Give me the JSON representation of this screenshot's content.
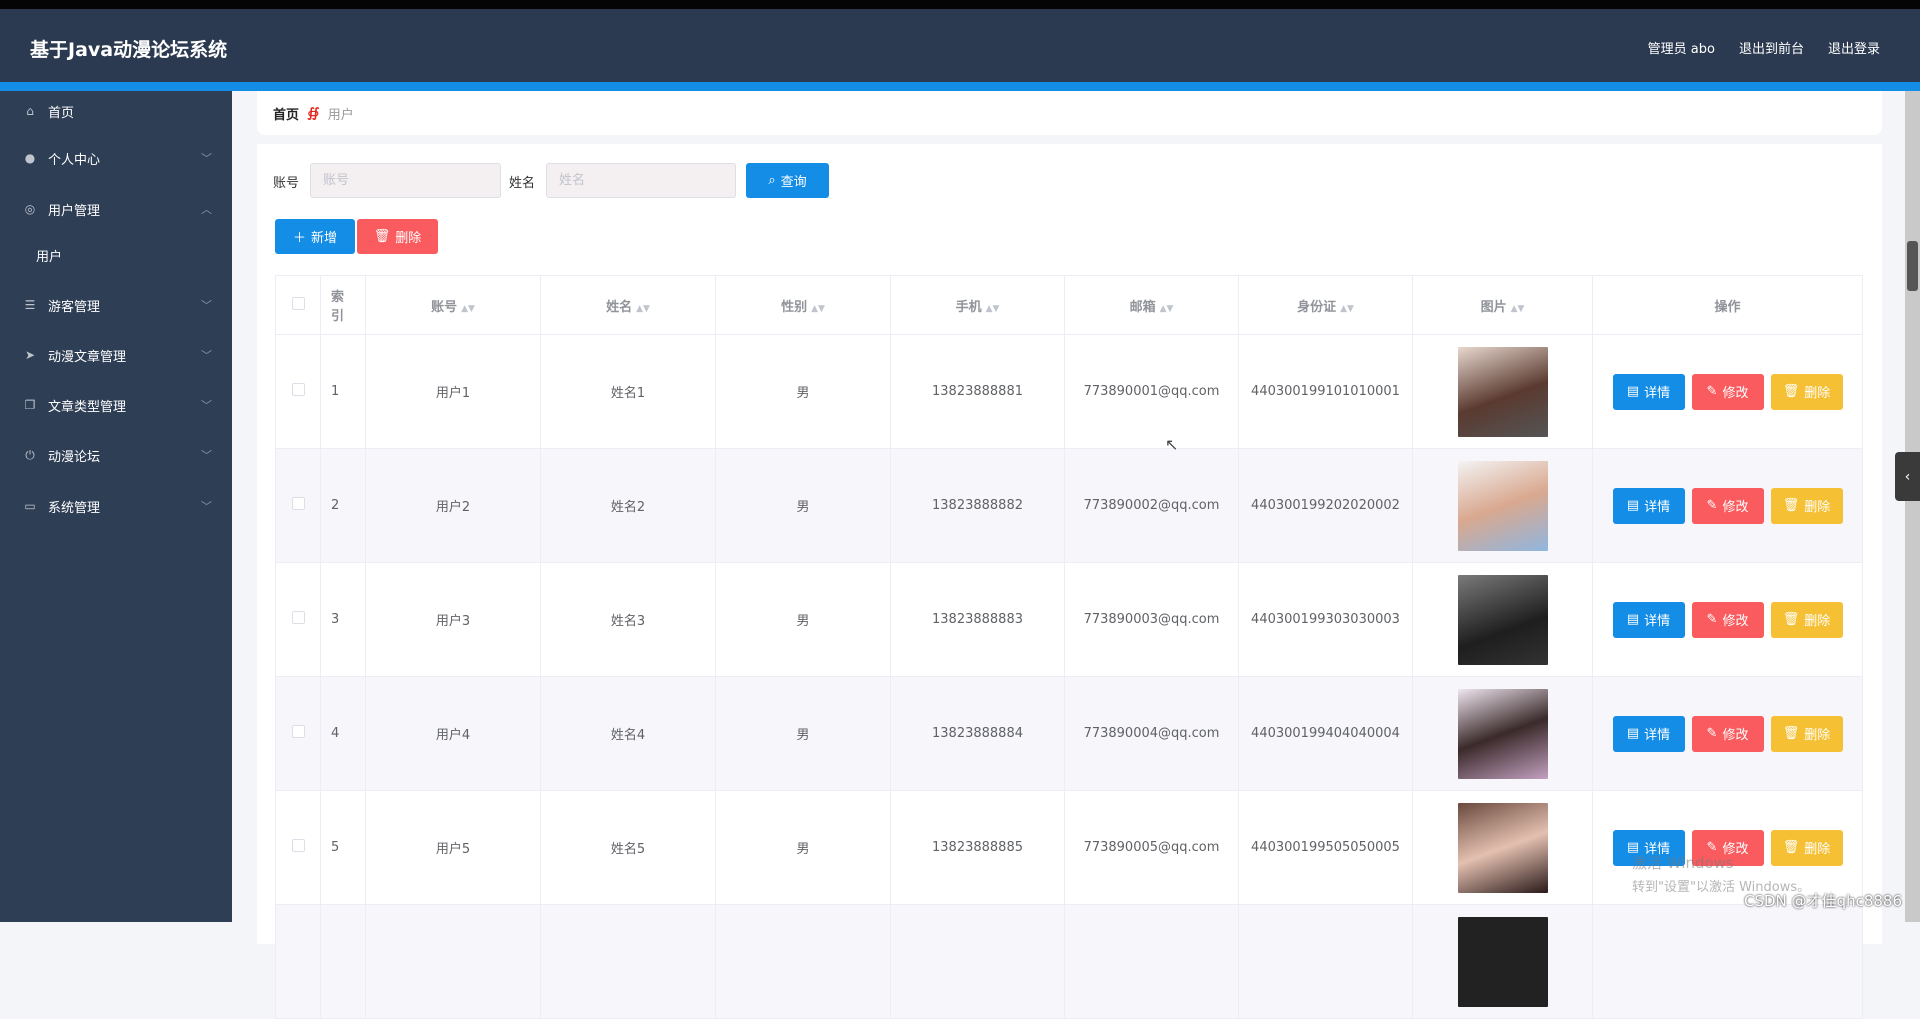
{
  "header": {
    "title": "基于Java动漫论坛系统",
    "admin": "管理员 abo",
    "to_front": "退出到前台",
    "logout": "退出登录"
  },
  "sidebar": {
    "items": [
      {
        "label": "首页",
        "icon": "home-icon"
      },
      {
        "label": "个人中心",
        "icon": "user-icon",
        "expanded": false
      },
      {
        "label": "用户管理",
        "icon": "compass-icon",
        "expanded": true
      },
      {
        "label": "用户",
        "sub": true
      },
      {
        "label": "游客管理",
        "icon": "sliders-icon",
        "expanded": false
      },
      {
        "label": "动漫文章管理",
        "icon": "send-icon",
        "expanded": false
      },
      {
        "label": "文章类型管理",
        "icon": "copy-icon",
        "expanded": false
      },
      {
        "label": "动漫论坛",
        "icon": "power-icon",
        "expanded": false
      },
      {
        "label": "系统管理",
        "icon": "message-icon",
        "expanded": false
      }
    ]
  },
  "breadcrumb": {
    "home": "首页",
    "current": "用户"
  },
  "search": {
    "account_label": "账号",
    "account_placeholder": "账号",
    "account_value": "",
    "name_label": "姓名",
    "name_placeholder": "姓名",
    "name_value": "",
    "query": "查询"
  },
  "toolbar": {
    "add": "新增",
    "delete": "删除"
  },
  "table": {
    "headers": [
      "索引",
      "账号",
      "姓名",
      "性别",
      "手机",
      "邮箱",
      "身份证",
      "图片",
      "操作"
    ],
    "actions": {
      "detail": "详情",
      "edit": "修改",
      "delete": "删除"
    },
    "rows": [
      {
        "index": "1",
        "account": "用户1",
        "name": "姓名1",
        "gender": "男",
        "phone": "13823888881",
        "email": "773890001@qq.com",
        "id_card": "440300199101010001"
      },
      {
        "index": "2",
        "account": "用户2",
        "name": "姓名2",
        "gender": "男",
        "phone": "13823888882",
        "email": "773890002@qq.com",
        "id_card": "440300199202020002"
      },
      {
        "index": "3",
        "account": "用户3",
        "name": "姓名3",
        "gender": "男",
        "phone": "13823888883",
        "email": "773890003@qq.com",
        "id_card": "440300199303030003"
      },
      {
        "index": "4",
        "account": "用户4",
        "name": "姓名4",
        "gender": "男",
        "phone": "13823888884",
        "email": "773890004@qq.com",
        "id_card": "440300199404040004"
      },
      {
        "index": "5",
        "account": "用户5",
        "name": "姓名5",
        "gender": "男",
        "phone": "13823888885",
        "email": "773890005@qq.com",
        "id_card": "440300199505050005"
      }
    ]
  },
  "colors": {
    "header": "#2b3a50",
    "sidebar": "#2e3e55",
    "accent": "#138de6",
    "danger": "#f95b5f",
    "warning": "#f5c034"
  },
  "watermark": {
    "line1": "激活 Windows",
    "line2": "转到\"设置\"以激活 Windows。",
    "csdn": "CSDN @才佳qhc8886"
  }
}
